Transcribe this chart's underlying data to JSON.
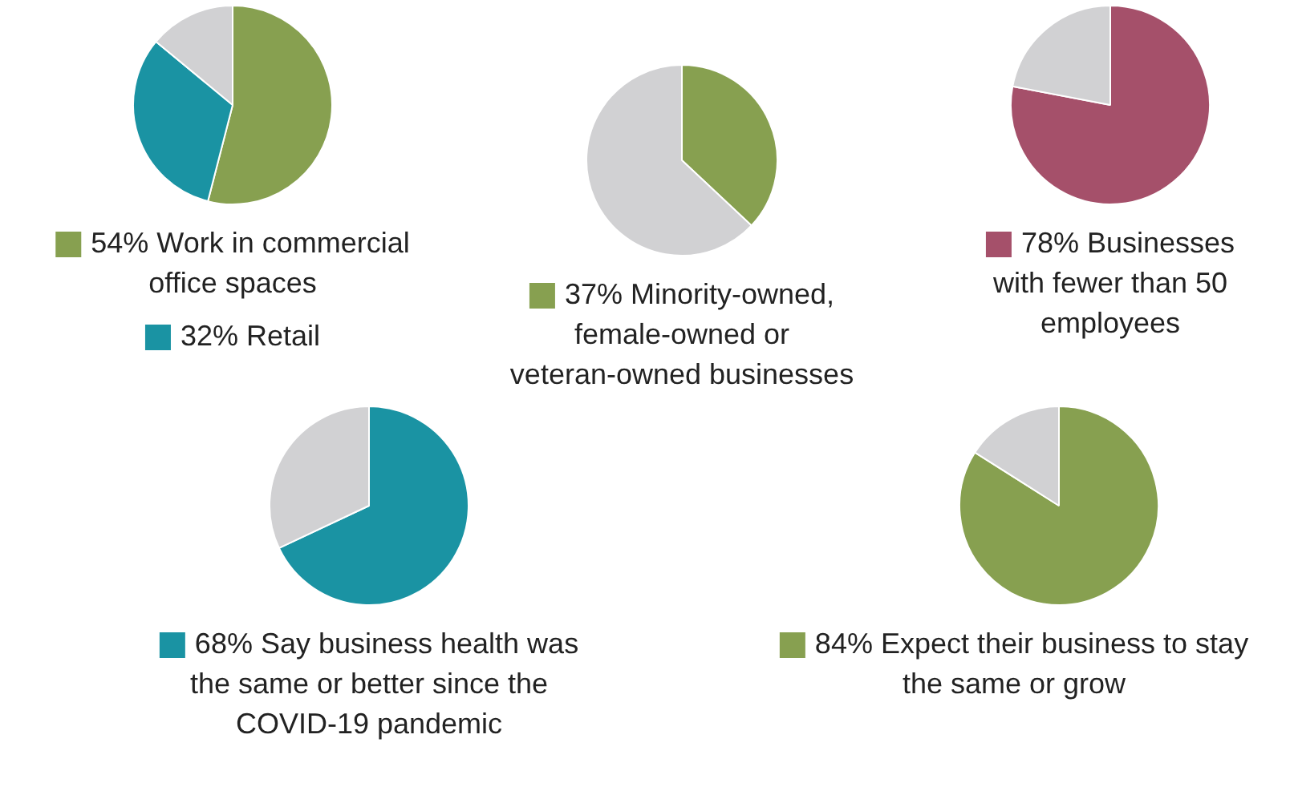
{
  "chart_data": [
    {
      "type": "pie",
      "categories": [
        "Work in commercial office spaces",
        "Retail",
        null
      ],
      "values": [
        54,
        32,
        14
      ],
      "value_labels": [
        "54%",
        "32%",
        null
      ],
      "colors": [
        "#87a050",
        "#1a93a3",
        "#d1d1d3"
      ],
      "legend": "bottom"
    },
    {
      "type": "pie",
      "categories": [
        "Minority-owned, female-owned or veteran-owned businesses",
        null
      ],
      "values": [
        37,
        63
      ],
      "value_labels": [
        "37%",
        null
      ],
      "colors": [
        "#87a050",
        "#d1d1d3"
      ],
      "legend": "bottom"
    },
    {
      "type": "pie",
      "categories": [
        "Businesses with fewer than 50 employees",
        null
      ],
      "values": [
        78,
        22
      ],
      "value_labels": [
        "78%",
        null
      ],
      "colors": [
        "#a5506a",
        "#d1d1d3"
      ],
      "legend": "bottom"
    },
    {
      "type": "pie",
      "categories": [
        "Say business health was the same or better since the COVID-19 pandemic",
        null
      ],
      "values": [
        68,
        32
      ],
      "value_labels": [
        "68%",
        null
      ],
      "colors": [
        "#1a93a3",
        "#d1d1d3"
      ],
      "legend": "bottom"
    },
    {
      "type": "pie",
      "categories": [
        "Expect their business to stay the same or grow",
        null
      ],
      "values": [
        84,
        16
      ],
      "value_labels": [
        "84%",
        null
      ],
      "colors": [
        "#87a050",
        "#d1d1d3"
      ],
      "legend": "bottom"
    }
  ]
}
